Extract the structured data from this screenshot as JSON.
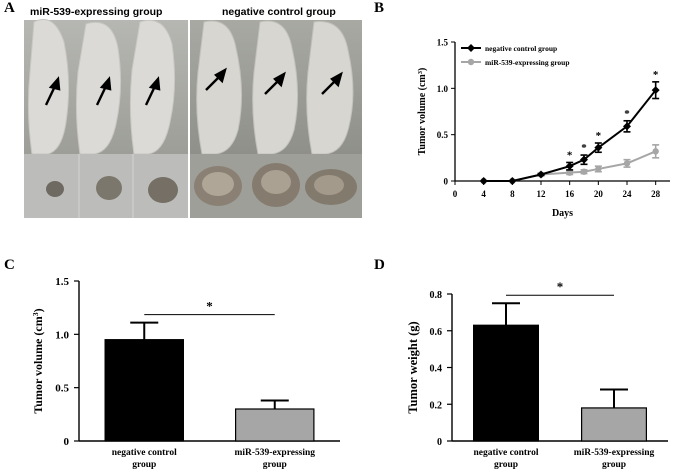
{
  "panels": {
    "a": "A",
    "b": "B",
    "c": "C",
    "d": "D"
  },
  "photo_panel": {
    "left_title": "miR-539-expressing group",
    "right_title": "negative control group",
    "colors": {
      "mouse_bg": "#a9aaa4",
      "tumor_bg_left": "#b9bab7",
      "tumor_bg_right": "#9a9b95",
      "arrow": "#000000"
    }
  },
  "chart_data": [
    {
      "id": "B",
      "type": "line",
      "xlabel": "Days",
      "ylabel": "Tumor volume (cm",
      "ylabel_sup": "3",
      "ylabel_end": ")",
      "x_ticks": [
        0,
        4,
        8,
        12,
        16,
        20,
        24,
        28
      ],
      "y_ticks": [
        "0",
        "0.5",
        "1.0",
        "1.5"
      ],
      "xlim": [
        0,
        30
      ],
      "ylim": [
        0,
        1.5
      ],
      "legend_position": "top-left",
      "significance_marker": "*",
      "significant_days": [
        16,
        18,
        20,
        24,
        28
      ],
      "series": [
        {
          "name": "negative control group",
          "color": "#000000",
          "marker": "diamond",
          "x": [
            4,
            8,
            12,
            16,
            18,
            20,
            24,
            28
          ],
          "y": [
            0,
            0,
            0.07,
            0.16,
            0.23,
            0.36,
            0.59,
            0.98
          ],
          "err": [
            0,
            0,
            0.01,
            0.04,
            0.05,
            0.05,
            0.06,
            0.09
          ]
        },
        {
          "name": "miR-539-expressing group",
          "color": "#a6a6a6",
          "marker": "circle",
          "x": [
            4,
            8,
            12,
            16,
            18,
            20,
            24,
            28
          ],
          "y": [
            0,
            0,
            0.07,
            0.09,
            0.1,
            0.13,
            0.19,
            0.32
          ],
          "err": [
            0,
            0,
            0.01,
            0.02,
            0.02,
            0.03,
            0.04,
            0.07
          ]
        }
      ]
    },
    {
      "id": "C",
      "type": "bar",
      "categories": [
        [
          "negative control",
          "group"
        ],
        [
          "miR-539-expressing",
          "group"
        ]
      ],
      "values": [
        0.95,
        0.3
      ],
      "err": [
        0.16,
        0.08
      ],
      "colors": [
        "#000000",
        "#a6a6a6"
      ],
      "ylabel": "Tumor volume (cm",
      "ylabel_sup": "3",
      "ylabel_end": ")",
      "y_ticks": [
        "0",
        "0.5",
        "1.0",
        "1.5"
      ],
      "ylim": [
        0,
        1.5
      ],
      "significance_marker": "*"
    },
    {
      "id": "D",
      "type": "bar",
      "categories": [
        [
          "negative control",
          "group"
        ],
        [
          "miR-539-expressing",
          "group"
        ]
      ],
      "values": [
        0.63,
        0.18
      ],
      "err": [
        0.12,
        0.1
      ],
      "colors": [
        "#000000",
        "#a6a6a6"
      ],
      "ylabel": "Tumor weight (g)",
      "y_ticks": [
        "0",
        "0.2",
        "0.4",
        "0.6",
        "0.8"
      ],
      "ylim": [
        0,
        0.8
      ],
      "significance_marker": "*"
    }
  ]
}
